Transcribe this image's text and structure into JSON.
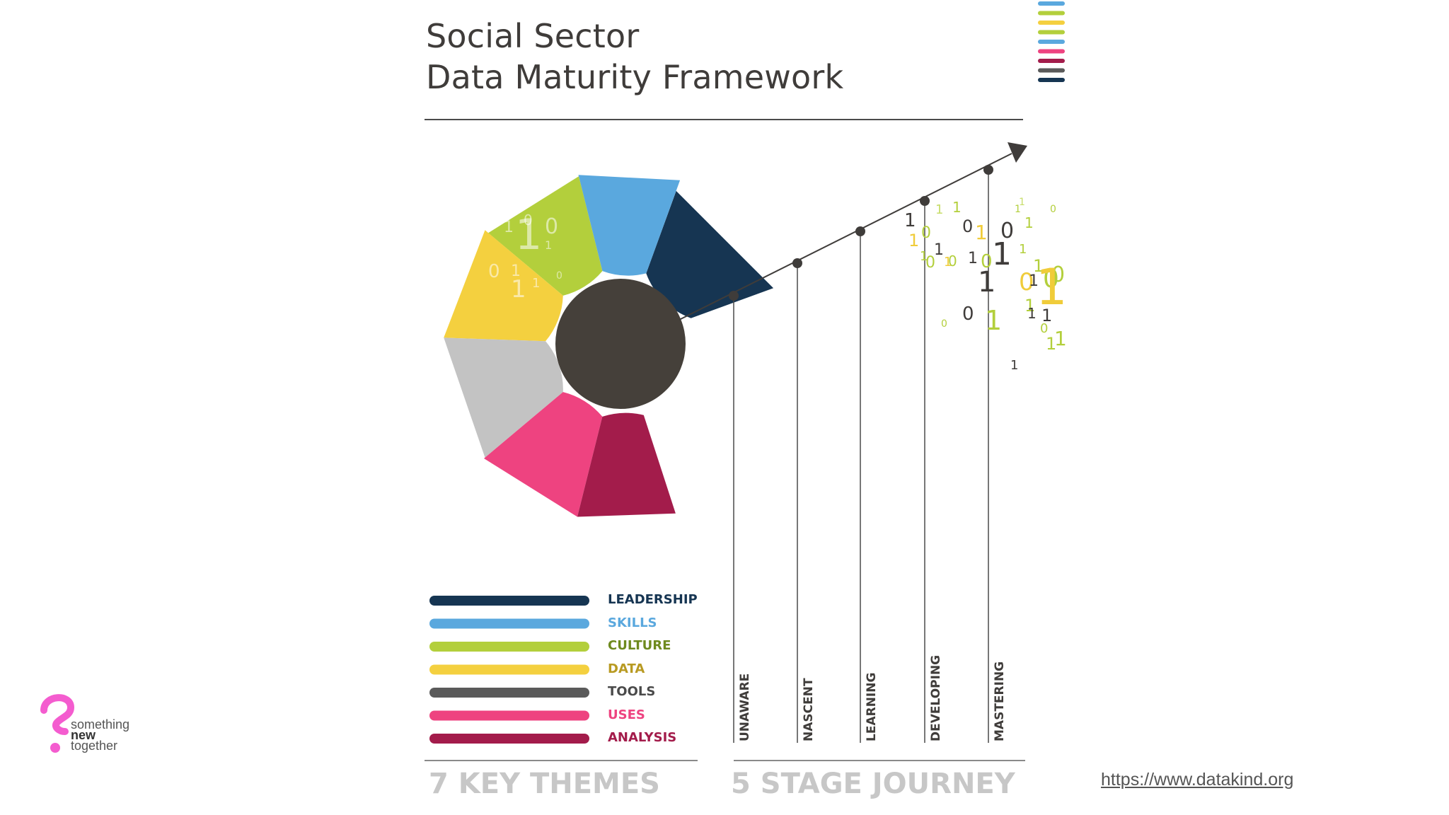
{
  "title": {
    "line1": "Social Sector",
    "line2": "Data Maturity Framework"
  },
  "colors": {
    "leadership": "#163552",
    "skills": "#5aa8de",
    "culture": "#b3cf3c",
    "data": "#f4d03f",
    "tools": "#c3c3c3",
    "tools_bar": "#5a5a5a",
    "uses": "#ee4380",
    "analysis": "#a31c4b",
    "hub": "#45403a",
    "text_dark": "#3f3c3a"
  },
  "themes": [
    {
      "id": "leadership",
      "label": "LEADERSHIP",
      "color": "#163552",
      "text_color": "#163552"
    },
    {
      "id": "skills",
      "label": "SKILLS",
      "color": "#5aa8de",
      "text_color": "#5aa8de"
    },
    {
      "id": "culture",
      "label": "CULTURE",
      "color": "#b3cf3c",
      "text_color": "#6e8a1e"
    },
    {
      "id": "data",
      "label": "DATA",
      "color": "#f4d03f",
      "text_color": "#b89a22"
    },
    {
      "id": "tools",
      "label": "TOOLS",
      "color": "#5a5a5a",
      "text_color": "#4a4a4a"
    },
    {
      "id": "uses",
      "label": "USES",
      "color": "#ee4380",
      "text_color": "#ee4380"
    },
    {
      "id": "analysis",
      "label": "ANALYSIS",
      "color": "#a31c4b",
      "text_color": "#a31c4b"
    }
  ],
  "stages": [
    "UNAWARE",
    "NASCENT",
    "LEARNING",
    "DEVELOPING",
    "MASTERING"
  ],
  "footer": {
    "themes_heading": "7 KEY THEMES",
    "journey_heading": "5 STAGE JOURNEY"
  },
  "link": "https://www.datakind.org",
  "logo": {
    "line1": "something",
    "line2": "new",
    "line3": "together"
  },
  "binary_digits": [
    "1",
    "0",
    "1",
    "1",
    "0",
    "1",
    "0",
    "1",
    "1",
    "1",
    "0",
    "1",
    "0",
    "1",
    "1",
    "0",
    "1",
    "1",
    "0",
    "1",
    "0",
    "0",
    "1",
    "1",
    "1",
    "0",
    "1",
    "1",
    "1",
    "0",
    "1",
    "1",
    "0",
    "1",
    "1",
    "0",
    "1",
    "1"
  ]
}
